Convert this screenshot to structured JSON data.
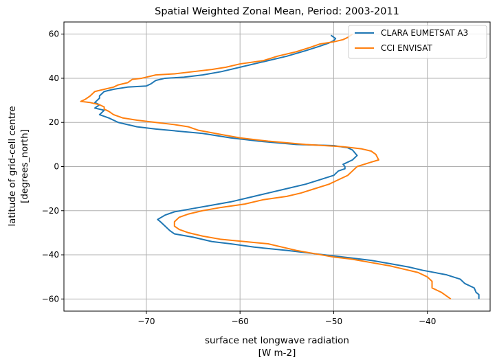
{
  "chart_data": {
    "type": "line",
    "title": "Spatial Weighted Zonal Mean, Period: 2003-2011",
    "xlabel": "surface net longwave radiation",
    "xlabel_units": "[W m-2]",
    "ylabel": "latitude of grid-cell centre",
    "ylabel_units": "[degrees_north]",
    "xlim": [
      -78.8,
      -33.3
    ],
    "ylim": [
      -65.5,
      65.5
    ],
    "xticks": [
      -70,
      -60,
      -50,
      -40
    ],
    "xtick_labels": [
      "−70",
      "−60",
      "−50",
      "−40"
    ],
    "yticks": [
      -60,
      -40,
      -20,
      0,
      20,
      40,
      60
    ],
    "ytick_labels": [
      "−60",
      "−40",
      "−20",
      "0",
      "20",
      "40",
      "60"
    ],
    "grid": true,
    "legend_position": "top-right",
    "series": [
      {
        "name": "CLARA EUMETSAT A3",
        "color": "#1f77b4",
        "points": [
          [
            -50.3,
            59.5
          ],
          [
            -49.8,
            58
          ],
          [
            -50,
            57
          ],
          [
            -50.5,
            56
          ],
          [
            -51.5,
            54.5
          ],
          [
            -53,
            52.5
          ],
          [
            -55,
            50
          ],
          [
            -57.5,
            47.5
          ],
          [
            -60,
            45
          ],
          [
            -62,
            43
          ],
          [
            -64,
            41.5
          ],
          [
            -66,
            40.5
          ],
          [
            -68,
            40
          ],
          [
            -69,
            39
          ],
          [
            -69.5,
            37.5
          ],
          [
            -70,
            36.5
          ],
          [
            -72,
            36
          ],
          [
            -73.5,
            35
          ],
          [
            -74.5,
            34
          ],
          [
            -75,
            32
          ],
          [
            -75,
            31
          ],
          [
            -75.5,
            29
          ],
          [
            -75,
            28
          ],
          [
            -75.5,
            26.5
          ],
          [
            -74.5,
            25.5
          ],
          [
            -75,
            23.5
          ],
          [
            -74,
            22
          ],
          [
            -73,
            20
          ],
          [
            -71,
            18
          ],
          [
            -69,
            17
          ],
          [
            -66.5,
            16
          ],
          [
            -64,
            15
          ],
          [
            -61,
            13
          ],
          [
            -58,
            11.5
          ],
          [
            -54,
            10
          ],
          [
            -50,
            9.5
          ],
          [
            -48.5,
            8.5
          ],
          [
            -48,
            7.5
          ],
          [
            -47.5,
            5
          ],
          [
            -48,
            3
          ],
          [
            -49,
            1
          ],
          [
            -48.8,
            0
          ],
          [
            -48.8,
            -1
          ],
          [
            -49.5,
            -2
          ],
          [
            -50,
            -4
          ],
          [
            -51.5,
            -6
          ],
          [
            -53,
            -8
          ],
          [
            -55,
            -10
          ],
          [
            -57,
            -12
          ],
          [
            -59,
            -14
          ],
          [
            -61,
            -16
          ],
          [
            -63,
            -17.5
          ],
          [
            -65,
            -19
          ],
          [
            -67,
            -20.5
          ],
          [
            -68,
            -22
          ],
          [
            -68.8,
            -24
          ],
          [
            -68.5,
            -25
          ],
          [
            -68,
            -27
          ],
          [
            -67.5,
            -29
          ],
          [
            -67,
            -30.5
          ],
          [
            -65,
            -32
          ],
          [
            -63,
            -34
          ],
          [
            -61,
            -35
          ],
          [
            -58.5,
            -36.5
          ],
          [
            -55,
            -38
          ],
          [
            -52,
            -39.5
          ],
          [
            -49,
            -41
          ],
          [
            -46,
            -42.5
          ],
          [
            -44,
            -44
          ],
          [
            -42,
            -45.5
          ],
          [
            -40.5,
            -47
          ],
          [
            -38,
            -49
          ],
          [
            -36.5,
            -51
          ],
          [
            -36,
            -53
          ],
          [
            -35,
            -55
          ],
          [
            -34.8,
            -57
          ],
          [
            -34.5,
            -58
          ],
          [
            -34.5,
            -60
          ]
        ]
      },
      {
        "name": "CCI ENVISAT",
        "color": "#ff7f0e",
        "points": [
          [
            -48,
            60
          ],
          [
            -48.5,
            58.5
          ],
          [
            -49,
            57.5
          ],
          [
            -50,
            56.5
          ],
          [
            -51.5,
            55.5
          ],
          [
            -52.5,
            54
          ],
          [
            -54,
            52
          ],
          [
            -56,
            50
          ],
          [
            -57.5,
            48
          ],
          [
            -60,
            46.5
          ],
          [
            -61.5,
            45
          ],
          [
            -63,
            44
          ],
          [
            -65,
            43
          ],
          [
            -67,
            42
          ],
          [
            -69,
            41.5
          ],
          [
            -70.5,
            40
          ],
          [
            -71.5,
            39.5
          ],
          [
            -72,
            38
          ],
          [
            -73,
            37
          ],
          [
            -73.5,
            36
          ],
          [
            -74.5,
            35
          ],
          [
            -75.5,
            34
          ],
          [
            -76,
            32
          ],
          [
            -76.5,
            30.5
          ],
          [
            -77,
            29.5
          ],
          [
            -76,
            29
          ],
          [
            -75,
            28
          ],
          [
            -74.5,
            27
          ],
          [
            -74.5,
            26
          ],
          [
            -74,
            25
          ],
          [
            -73.5,
            23.5
          ],
          [
            -72.5,
            22
          ],
          [
            -71,
            21
          ],
          [
            -69,
            20
          ],
          [
            -67,
            19
          ],
          [
            -65.5,
            18
          ],
          [
            -64.5,
            16.5
          ],
          [
            -62,
            14.5
          ],
          [
            -60,
            13
          ],
          [
            -57,
            11.5
          ],
          [
            -53,
            10
          ],
          [
            -49,
            9
          ],
          [
            -47,
            8
          ],
          [
            -46,
            7
          ],
          [
            -45.5,
            5.5
          ],
          [
            -45.2,
            3
          ],
          [
            -46,
            2
          ],
          [
            -47.5,
            0
          ],
          [
            -48,
            -2
          ],
          [
            -48.5,
            -4
          ],
          [
            -49.5,
            -6
          ],
          [
            -50.5,
            -8
          ],
          [
            -52,
            -10
          ],
          [
            -53.5,
            -12
          ],
          [
            -55,
            -13.5
          ],
          [
            -57.5,
            -15
          ],
          [
            -59.5,
            -17
          ],
          [
            -62,
            -18.5
          ],
          [
            -64,
            -20
          ],
          [
            -65.5,
            -21.5
          ],
          [
            -66.5,
            -23
          ],
          [
            -67,
            -25
          ],
          [
            -67,
            -27
          ],
          [
            -66.5,
            -28.5
          ],
          [
            -65.5,
            -30
          ],
          [
            -64,
            -31.5
          ],
          [
            -62,
            -33
          ],
          [
            -59.5,
            -34
          ],
          [
            -57,
            -35
          ],
          [
            -55.5,
            -36.5
          ],
          [
            -54,
            -38
          ],
          [
            -52,
            -39.5
          ],
          [
            -50,
            -41
          ],
          [
            -48,
            -42
          ],
          [
            -46,
            -43.5
          ],
          [
            -44,
            -45
          ],
          [
            -42.5,
            -46.5
          ],
          [
            -41,
            -48
          ],
          [
            -40,
            -50
          ],
          [
            -39.5,
            -52
          ],
          [
            -39.5,
            -54
          ],
          [
            -39.5,
            -55
          ],
          [
            -38.5,
            -57
          ],
          [
            -37.5,
            -60
          ]
        ]
      }
    ]
  }
}
